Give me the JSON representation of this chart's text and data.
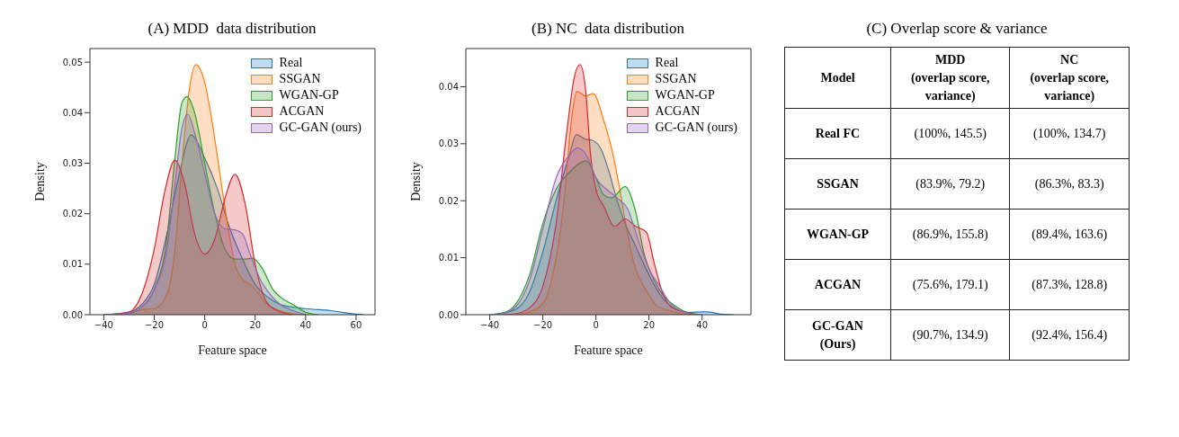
{
  "chart_data": [
    {
      "type": "area",
      "title": "(A) MDD  data distribution",
      "xlabel": "Feature space",
      "ylabel": "Density",
      "xlim": [
        -45.5,
        67.5
      ],
      "ylim": [
        0,
        0.0527
      ],
      "xticks": [
        -40,
        -20,
        0,
        20,
        40,
        60
      ],
      "yticks": [
        {
          "value": 0,
          "label": "0.00"
        },
        0.01,
        0.02,
        0.03,
        0.04,
        0.05
      ],
      "legend": "top right",
      "series": [
        {
          "name": "Real",
          "color": "#1f77b4",
          "x": [
            -40,
            -30,
            -25,
            -20,
            -15,
            -10,
            -5.4,
            0,
            5,
            10,
            15,
            20,
            25,
            30,
            40,
            50,
            60,
            63
          ],
          "values": [
            0,
            0.0005,
            0.002,
            0.006,
            0.016,
            0.028,
            0.0356,
            0.031,
            0.025,
            0.017,
            0.011,
            0.006,
            0.0035,
            0.002,
            0.0012,
            0.0008,
            0.0001,
            0
          ]
        },
        {
          "name": "SSGAN",
          "color": "#ff7f0e",
          "x": [
            -40,
            -30,
            -25,
            -20,
            -15,
            -12,
            -9,
            -6,
            -3.5,
            0,
            3,
            6,
            9,
            12,
            15,
            18,
            20,
            25,
            30,
            35,
            40
          ],
          "values": [
            0,
            0.0003,
            0.001,
            0.0012,
            0.004,
            0.012,
            0.03,
            0.045,
            0.0495,
            0.046,
            0.038,
            0.028,
            0.018,
            0.01,
            0.007,
            0.006,
            0.005,
            0.002,
            0.0008,
            0.0002,
            0
          ]
        },
        {
          "name": "WGAN-GP",
          "color": "#2ca02c",
          "x": [
            -40,
            -30,
            -25,
            -20,
            -15,
            -12,
            -9,
            -7,
            -4,
            0,
            4,
            8,
            12,
            16,
            19,
            23,
            27,
            30,
            35,
            40,
            45
          ],
          "values": [
            0,
            0.0003,
            0.0015,
            0.005,
            0.015,
            0.03,
            0.042,
            0.0432,
            0.04,
            0.03,
            0.02,
            0.013,
            0.011,
            0.011,
            0.0112,
            0.009,
            0.005,
            0.0035,
            0.002,
            0.0005,
            0
          ]
        },
        {
          "name": "ACGAN",
          "color": "#d62728",
          "x": [
            -38,
            -35,
            -30,
            -25,
            -20,
            -16,
            -11.8,
            -8,
            -4,
            0,
            4,
            8,
            12,
            16,
            20,
            24,
            28,
            35
          ],
          "values": [
            0,
            0.0001,
            0.0005,
            0.004,
            0.013,
            0.024,
            0.0306,
            0.026,
            0.016,
            0.012,
            0.015,
            0.023,
            0.0278,
            0.022,
            0.01,
            0.003,
            0.001,
            0
          ]
        },
        {
          "name": "GC-GAN (ours)",
          "color": "#9467bd",
          "x": [
            -40,
            -30,
            -25,
            -20,
            -15,
            -12,
            -9,
            -6.8,
            -4,
            0,
            4,
            8,
            12,
            15,
            18,
            22,
            26,
            30,
            35,
            40
          ],
          "values": [
            0,
            0.0003,
            0.0015,
            0.005,
            0.013,
            0.025,
            0.037,
            0.0397,
            0.036,
            0.028,
            0.02,
            0.017,
            0.0168,
            0.016,
            0.012,
            0.007,
            0.004,
            0.002,
            0.0008,
            0
          ]
        }
      ]
    },
    {
      "type": "area",
      "title": "(B) NC  data distribution",
      "xlabel": "Feature space",
      "ylabel": "Density",
      "xlim": [
        -49,
        58.4
      ],
      "ylim": [
        0,
        0.0467
      ],
      "xticks": [
        -40,
        -20,
        0,
        20,
        40
      ],
      "yticks": [
        {
          "value": 0,
          "label": "0.00"
        },
        0.01,
        0.02,
        0.03,
        0.04
      ],
      "legend": "top right",
      "series": [
        {
          "name": "Real",
          "color": "#1f77b4",
          "x": [
            -40,
            -35,
            -30,
            -25,
            -20,
            -15,
            -10,
            -7.4,
            -4,
            -1.4,
            2,
            5,
            8,
            11,
            15,
            20,
            25,
            30,
            35,
            40,
            42,
            47,
            52
          ],
          "values": [
            0,
            0.0003,
            0.001,
            0.004,
            0.011,
            0.02,
            0.028,
            0.0316,
            0.0308,
            0.0306,
            0.029,
            0.025,
            0.02,
            0.016,
            0.012,
            0.007,
            0.003,
            0.001,
            0.0004,
            0.0005,
            0.0005,
            0.0001,
            0
          ]
        },
        {
          "name": "SSGAN",
          "color": "#ff7f0e",
          "x": [
            -30,
            -25,
            -20,
            -15,
            -12,
            -9,
            -7.2,
            -4,
            -1,
            3,
            6,
            9,
            12,
            15,
            18,
            20,
            23,
            28,
            33,
            36
          ],
          "values": [
            0,
            0.0005,
            0.002,
            0.01,
            0.02,
            0.035,
            0.0392,
            0.0384,
            0.0388,
            0.034,
            0.029,
            0.022,
            0.014,
            0.008,
            0.005,
            0.0035,
            0.0015,
            0.0007,
            0.0001,
            0
          ]
        },
        {
          "name": "WGAN-GP",
          "color": "#2ca02c",
          "x": [
            -40,
            -35,
            -30,
            -25,
            -20,
            -15,
            -10,
            -3.5,
            0,
            3,
            6,
            11,
            15,
            18,
            22,
            26,
            30,
            35,
            40
          ],
          "values": [
            0,
            0.0003,
            0.002,
            0.007,
            0.016,
            0.022,
            0.025,
            0.027,
            0.024,
            0.021,
            0.0205,
            0.0225,
            0.018,
            0.011,
            0.006,
            0.003,
            0.0015,
            0.0003,
            0
          ]
        },
        {
          "name": "ACGAN",
          "color": "#d62728",
          "x": [
            -35,
            -30,
            -25,
            -20,
            -15,
            -11,
            -8,
            -6,
            -4,
            -2,
            0,
            3,
            7,
            11,
            15,
            19,
            22,
            25,
            28,
            33,
            38
          ],
          "values": [
            0,
            0.0002,
            0.0012,
            0.005,
            0.016,
            0.032,
            0.042,
            0.0439,
            0.04,
            0.028,
            0.022,
            0.019,
            0.0155,
            0.0168,
            0.0155,
            0.0145,
            0.009,
            0.004,
            0.0015,
            0.0005,
            0
          ]
        },
        {
          "name": "GC-GAN (ours)",
          "color": "#9467bd",
          "x": [
            -40,
            -35,
            -30,
            -25,
            -20,
            -15,
            -10,
            -6.8,
            -3,
            0,
            4,
            8,
            12,
            16,
            20,
            24,
            28,
            33,
            38
          ],
          "values": [
            0,
            0.0002,
            0.0015,
            0.006,
            0.015,
            0.024,
            0.028,
            0.0293,
            0.0275,
            0.024,
            0.022,
            0.0205,
            0.0185,
            0.013,
            0.008,
            0.005,
            0.002,
            0.0005,
            0
          ]
        }
      ]
    },
    {
      "type": "other",
      "title": "(C) Overlap score & variance",
      "annotations": [
        "Model",
        "MDD\n(overlap score,\nvariance)",
        "NC\n(overlap score,\nvariance)",
        "Real FC",
        "(100%, 145.5)",
        "(100%, 134.7)",
        "SSGAN",
        "(83.9%, 79.2)",
        "(86.3%, 83.3)",
        "WGAN-GP",
        "(86.9%, 155.8)",
        "(89.4%, 163.6)",
        "ACGAN",
        "(75.6%, 179.1)",
        "(87.3%, 128.8)",
        "GC-GAN\n(Ours)",
        "(90.7%, 134.9)",
        "(92.4%, 156.4)"
      ]
    }
  ]
}
